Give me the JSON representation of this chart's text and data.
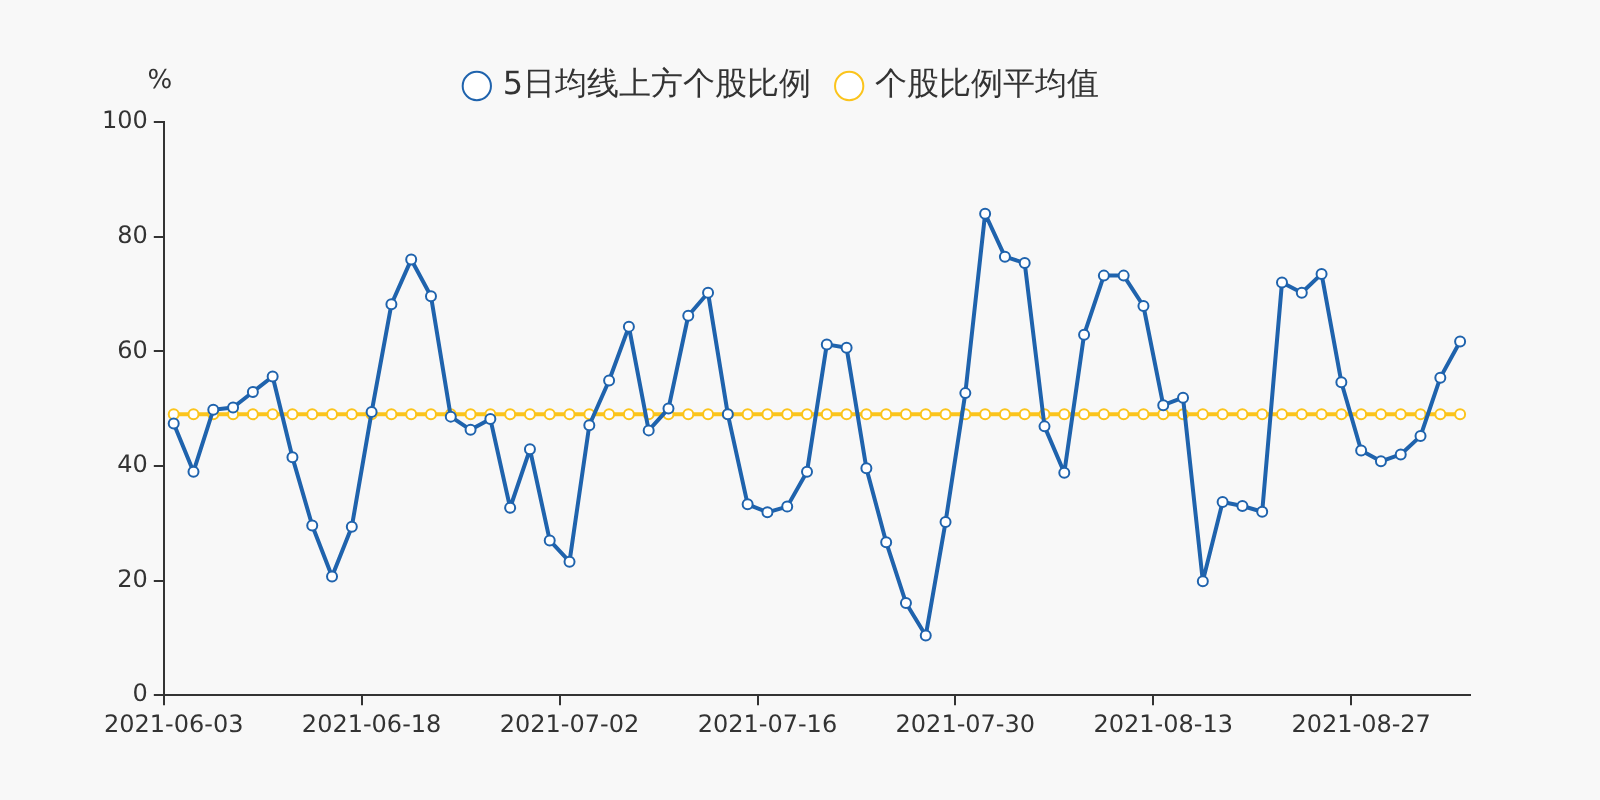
{
  "chart_data": {
    "type": "line",
    "ylabel": "%",
    "categories": [
      "2021-06-03",
      null,
      null,
      null,
      null,
      null,
      null,
      null,
      null,
      null,
      "2021-06-18",
      null,
      null,
      null,
      null,
      null,
      null,
      null,
      null,
      null,
      "2021-07-02",
      null,
      null,
      null,
      null,
      null,
      null,
      null,
      null,
      null,
      "2021-07-16",
      null,
      null,
      null,
      null,
      null,
      null,
      null,
      null,
      null,
      "2021-07-30",
      null,
      null,
      null,
      null,
      null,
      null,
      null,
      null,
      null,
      "2021-08-13",
      null,
      null,
      null,
      null,
      null,
      null,
      null,
      null,
      null,
      "2021-08-27",
      null,
      null,
      null,
      null,
      null
    ],
    "series": [
      {
        "name": "5日均线上方个股比例",
        "color": "#1f63ad",
        "values": [
          47.4,
          39.0,
          49.8,
          50.2,
          52.9,
          55.6,
          41.5,
          29.6,
          20.7,
          29.4,
          49.4,
          68.2,
          76.0,
          69.6,
          48.6,
          46.3,
          48.2,
          32.7,
          42.9,
          27.0,
          23.3,
          47.1,
          54.9,
          64.3,
          46.2,
          50.0,
          66.2,
          70.2,
          49.0,
          33.3,
          31.9,
          32.9,
          39.0,
          61.2,
          60.6,
          39.6,
          26.7,
          16.1,
          10.4,
          30.2,
          52.7,
          84.0,
          76.5,
          75.4,
          46.9,
          38.8,
          62.9,
          73.2,
          73.2,
          67.9,
          50.6,
          51.9,
          19.9,
          33.7,
          33.0,
          32.0,
          72.0,
          70.2,
          73.5,
          54.6,
          42.7,
          40.8,
          42.0,
          45.2,
          55.4,
          61.7
        ]
      },
      {
        "name": "个股比例平均值",
        "color": "#fbc41c",
        "values": [
          49.0,
          49.0,
          49.0,
          49.0,
          49.0,
          49.0,
          49.0,
          49.0,
          49.0,
          49.0,
          49.0,
          49.0,
          49.0,
          49.0,
          49.0,
          49.0,
          49.0,
          49.0,
          49.0,
          49.0,
          49.0,
          49.0,
          49.0,
          49.0,
          49.0,
          49.0,
          49.0,
          49.0,
          49.0,
          49.0,
          49.0,
          49.0,
          49.0,
          49.0,
          49.0,
          49.0,
          49.0,
          49.0,
          49.0,
          49.0,
          49.0,
          49.0,
          49.0,
          49.0,
          49.0,
          49.0,
          49.0,
          49.0,
          49.0,
          49.0,
          49.0,
          49.0,
          49.0,
          49.0,
          49.0,
          49.0,
          49.0,
          49.0,
          49.0,
          49.0,
          49.0,
          49.0,
          49.0,
          49.0,
          49.0,
          49.0
        ]
      }
    ],
    "ylim": [
      0,
      100
    ],
    "yticks": [
      0,
      20,
      40,
      60,
      80,
      100
    ],
    "grid": false,
    "legend": "top",
    "marker": "circle",
    "line_style": "solid"
  }
}
